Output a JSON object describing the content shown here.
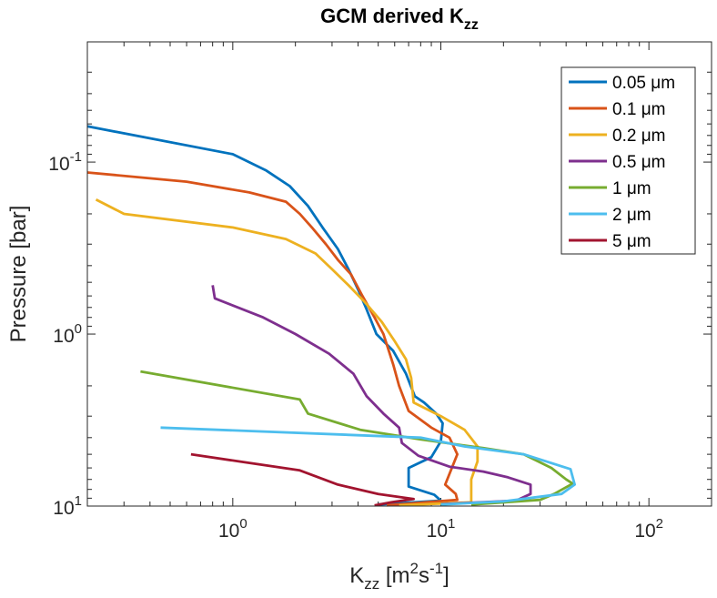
{
  "chart_data": {
    "type": "line",
    "title": "GCM derived K",
    "title_sub": "zz",
    "xlabel": {
      "main": "K",
      "sub": "zz",
      "units": " [m",
      "sup1": "2",
      "mid": "s",
      "sup2": "-1",
      "end": "]"
    },
    "ylabel": "Pressure [bar]",
    "xscale": "log",
    "yscale": "log",
    "yreversed": true,
    "xlim": [
      0.2,
      200
    ],
    "ylim": [
      0.02,
      10
    ],
    "x_ticks": [
      {
        "value": 1,
        "base": "10",
        "exp": "0"
      },
      {
        "value": 10,
        "base": "10",
        "exp": "1"
      },
      {
        "value": 100,
        "base": "10",
        "exp": "2"
      }
    ],
    "y_ticks": [
      {
        "value": 0.1,
        "base": "10",
        "exp": "-1"
      },
      {
        "value": 1,
        "base": "10",
        "exp": "0"
      },
      {
        "value": 10,
        "base": "10",
        "exp": "1"
      }
    ],
    "legend_position": "top-right",
    "series": [
      {
        "name": "0.05 μm",
        "color": "#0072BD",
        "points": [
          [
            0.2,
            0.062
          ],
          [
            1.0,
            0.09
          ],
          [
            1.45,
            0.112
          ],
          [
            1.88,
            0.138
          ],
          [
            2.3,
            0.18
          ],
          [
            2.7,
            0.24
          ],
          [
            3.2,
            0.32
          ],
          [
            3.6,
            0.42
          ],
          [
            4.0,
            0.55
          ],
          [
            4.4,
            0.72
          ],
          [
            4.9,
            1.0
          ],
          [
            5.9,
            1.25
          ],
          [
            6.8,
            1.7
          ],
          [
            7.5,
            2.3
          ],
          [
            8.3,
            2.5
          ],
          [
            9.5,
            2.9
          ],
          [
            10.2,
            3.3
          ],
          [
            10.0,
            4.2
          ],
          [
            9.0,
            5.2
          ],
          [
            7.0,
            6.0
          ],
          [
            7.0,
            7.7
          ],
          [
            9.3,
            8.6
          ],
          [
            10.0,
            9.3
          ],
          [
            5.0,
            9.8
          ]
        ]
      },
      {
        "name": "0.1 μm",
        "color": "#D95319",
        "points": [
          [
            0.2,
            0.115
          ],
          [
            0.6,
            0.13
          ],
          [
            1.2,
            0.15
          ],
          [
            1.8,
            0.17
          ],
          [
            2.1,
            0.2
          ],
          [
            2.4,
            0.24
          ],
          [
            2.8,
            0.3
          ],
          [
            3.2,
            0.37
          ],
          [
            3.7,
            0.45
          ],
          [
            4.2,
            0.6
          ],
          [
            4.8,
            0.8
          ],
          [
            5.3,
            1.0
          ],
          [
            5.9,
            1.5
          ],
          [
            6.3,
            2.0
          ],
          [
            7.0,
            2.8
          ],
          [
            9.0,
            3.5
          ],
          [
            11.0,
            4.0
          ],
          [
            12.0,
            5.0
          ],
          [
            11.0,
            6.5
          ],
          [
            10.5,
            7.5
          ],
          [
            11.8,
            8.5
          ],
          [
            12.0,
            9.2
          ],
          [
            5.5,
            9.9
          ]
        ]
      },
      {
        "name": "0.2 μm",
        "color": "#EDB120",
        "points": [
          [
            0.22,
            0.165
          ],
          [
            0.3,
            0.2
          ],
          [
            1.0,
            0.24
          ],
          [
            1.8,
            0.28
          ],
          [
            2.5,
            0.34
          ],
          [
            3.0,
            0.42
          ],
          [
            3.6,
            0.52
          ],
          [
            4.3,
            0.65
          ],
          [
            5.2,
            0.85
          ],
          [
            6.0,
            1.1
          ],
          [
            6.8,
            1.4
          ],
          [
            7.2,
            1.8
          ],
          [
            7.4,
            2.5
          ],
          [
            10.0,
            3.0
          ],
          [
            13.0,
            3.6
          ],
          [
            15.0,
            4.5
          ],
          [
            15.0,
            5.5
          ],
          [
            14.0,
            7.0
          ],
          [
            14.0,
            8.5
          ],
          [
            14.0,
            9.5
          ],
          [
            6.3,
            9.9
          ]
        ]
      },
      {
        "name": "0.5 μm",
        "color": "#7E2F8E",
        "points": [
          [
            0.8,
            0.52
          ],
          [
            0.82,
            0.62
          ],
          [
            1.4,
            0.8
          ],
          [
            2.0,
            1.0
          ],
          [
            2.9,
            1.3
          ],
          [
            3.8,
            1.7
          ],
          [
            4.4,
            2.3
          ],
          [
            5.3,
            2.9
          ],
          [
            6.3,
            3.5
          ],
          [
            6.5,
            4.3
          ],
          [
            7.8,
            5.1
          ],
          [
            11.0,
            5.9
          ],
          [
            16.0,
            6.3
          ],
          [
            21.0,
            6.8
          ],
          [
            27.0,
            7.5
          ],
          [
            27.0,
            8.5
          ],
          [
            23.0,
            9.3
          ],
          [
            10.0,
            9.75
          ]
        ]
      },
      {
        "name": "1 μm",
        "color": "#77AC30",
        "points": [
          [
            0.36,
            1.65
          ],
          [
            2.1,
            2.4
          ],
          [
            2.3,
            2.9
          ],
          [
            4.1,
            3.6
          ],
          [
            8.0,
            4.1
          ],
          [
            16.0,
            4.6
          ],
          [
            25.0,
            5.0
          ],
          [
            34.0,
            6.0
          ],
          [
            40.0,
            7.0
          ],
          [
            43.0,
            7.4
          ],
          [
            35.0,
            8.5
          ],
          [
            30.0,
            9.2
          ],
          [
            14.0,
            9.8
          ]
        ]
      },
      {
        "name": "2 μm",
        "color": "#4DBEEE",
        "points": [
          [
            0.45,
            3.5
          ],
          [
            8.0,
            4.0
          ],
          [
            13.0,
            4.5
          ],
          [
            25.0,
            5.0
          ],
          [
            42.0,
            6.1
          ],
          [
            44.0,
            7.5
          ],
          [
            38.0,
            8.5
          ],
          [
            20.0,
            9.4
          ],
          [
            10.0,
            9.8
          ]
        ]
      },
      {
        "name": "5 μm",
        "color": "#A2142F",
        "points": [
          [
            0.63,
            5.0
          ],
          [
            2.1,
            6.2
          ],
          [
            3.2,
            7.5
          ],
          [
            5.0,
            8.5
          ],
          [
            7.4,
            9.1
          ],
          [
            5.8,
            9.5
          ],
          [
            4.8,
            9.9
          ]
        ]
      }
    ]
  }
}
